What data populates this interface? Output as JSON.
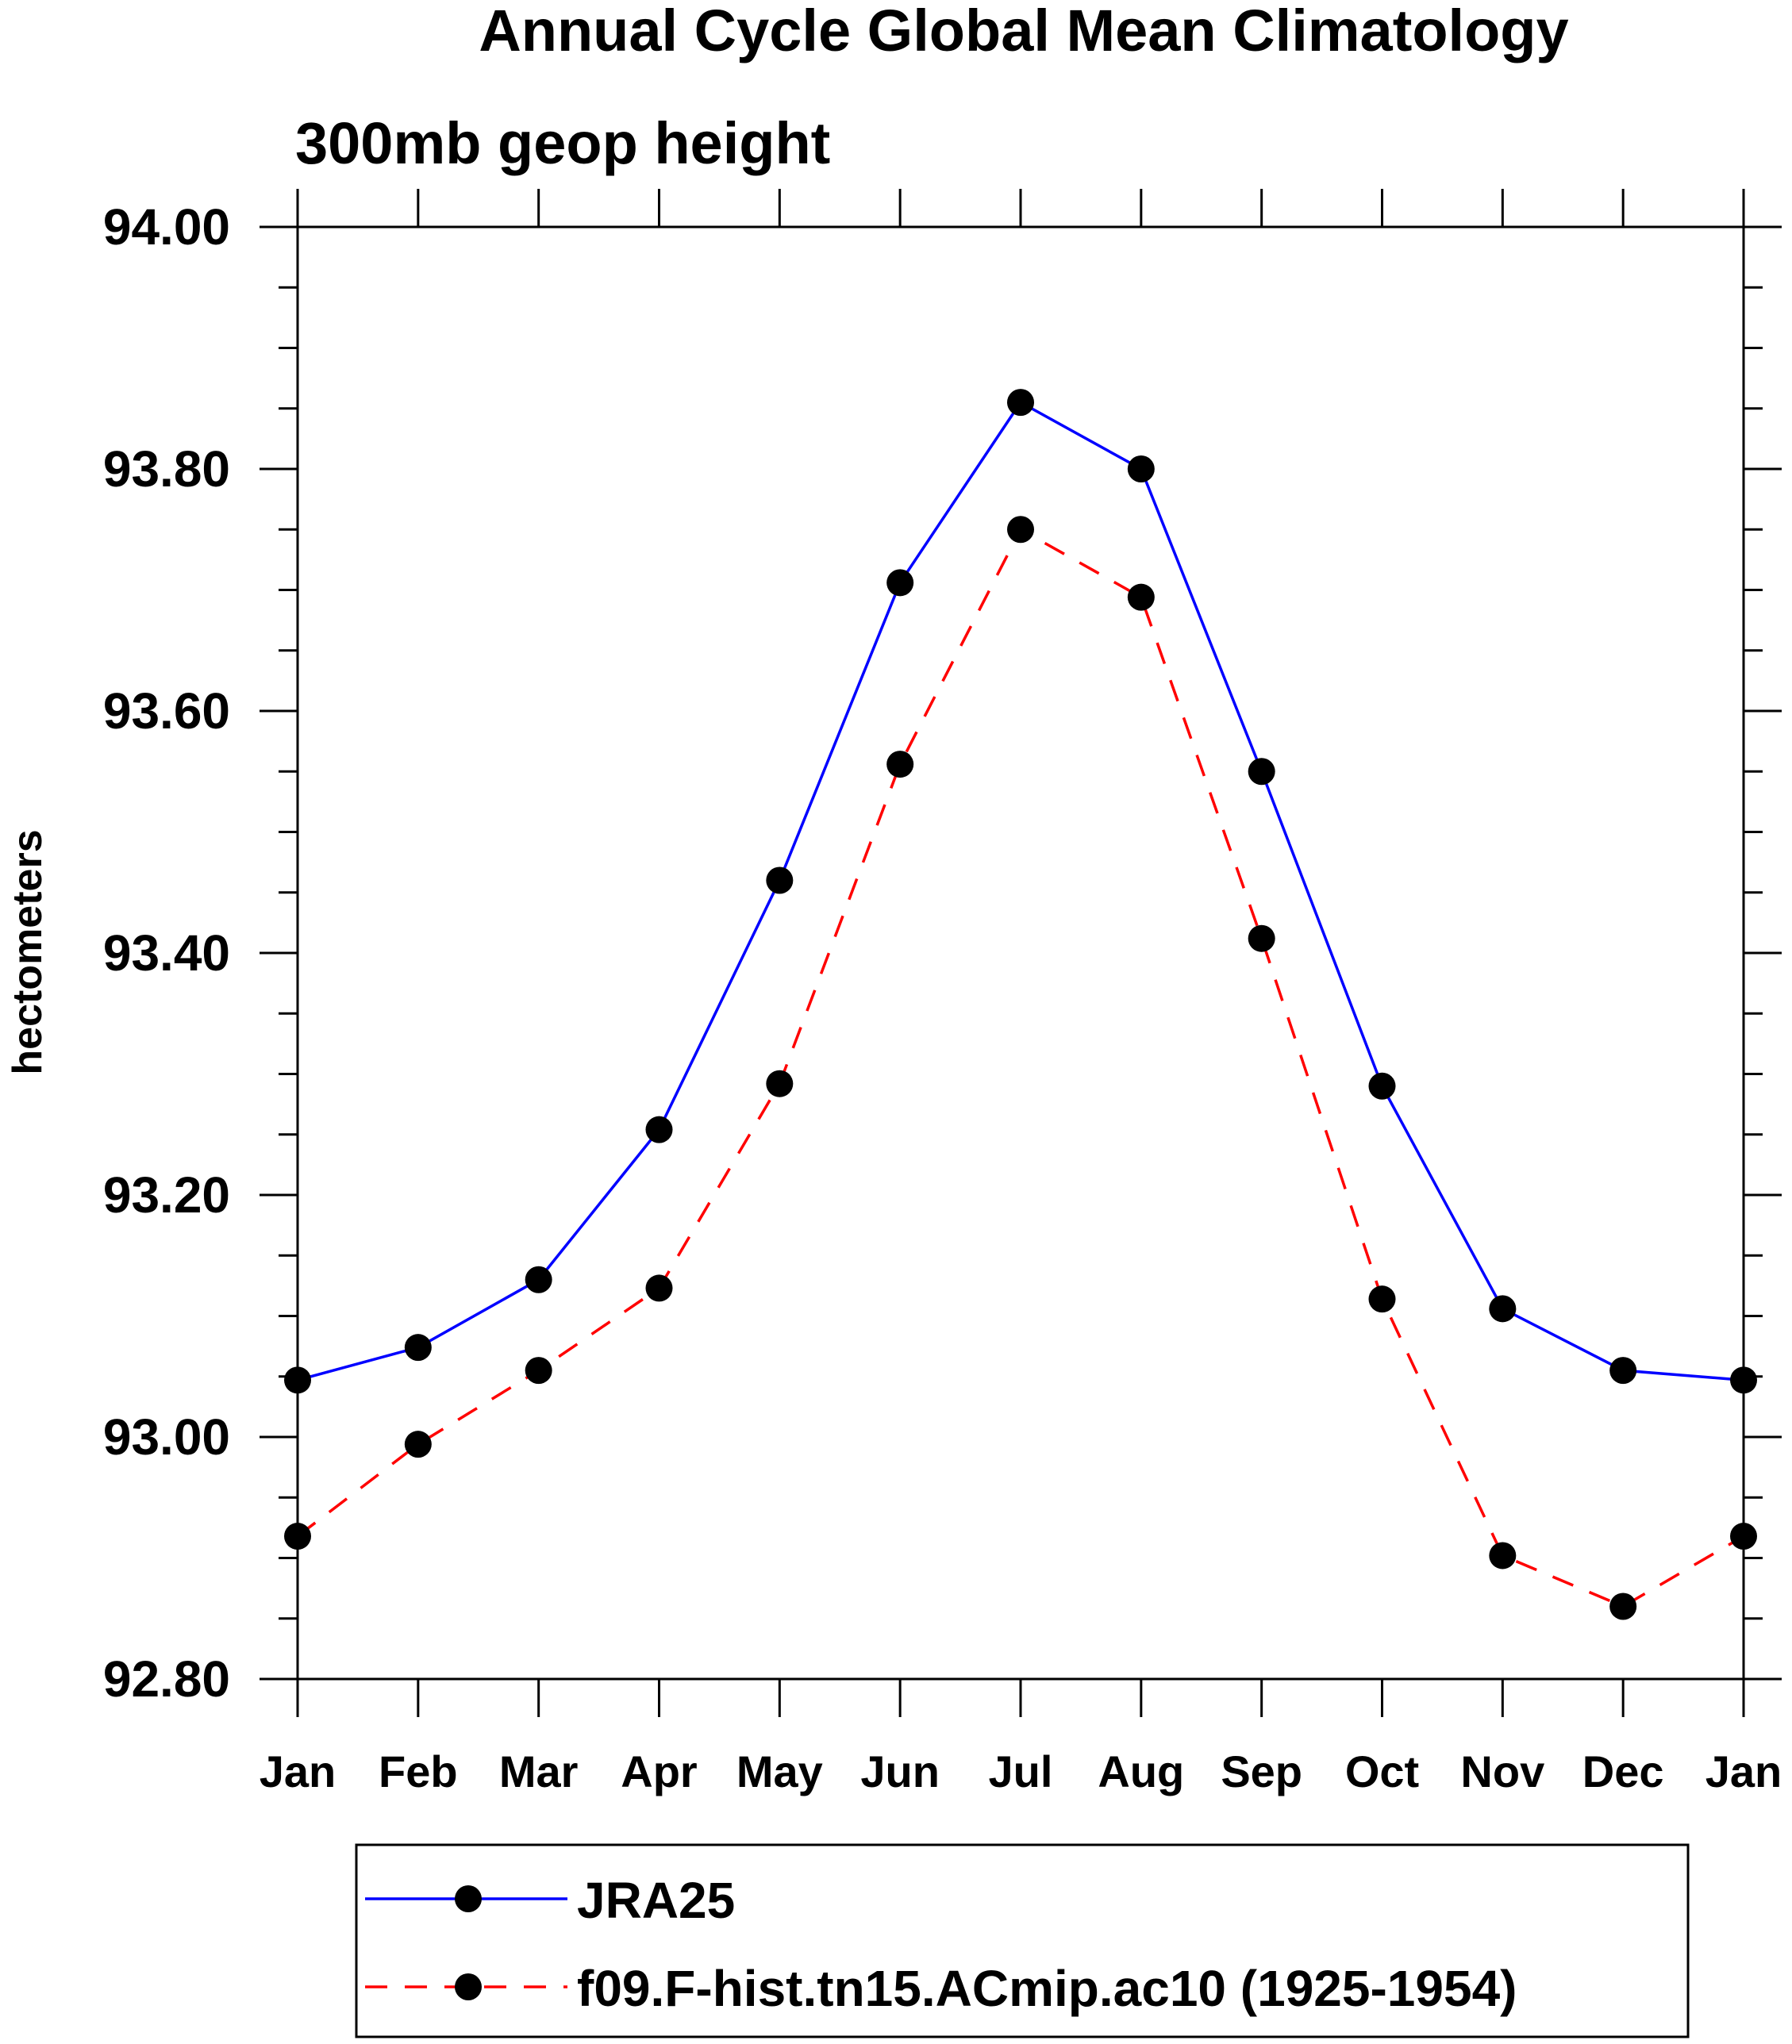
{
  "chart_data": {
    "type": "line",
    "title": "Annual Cycle Global Mean Climatology",
    "subtitle": "300mb geop height",
    "xlabel": "",
    "ylabel": "hectometers",
    "categories": [
      "Jan",
      "Feb",
      "Mar",
      "Apr",
      "May",
      "Jun",
      "Jul",
      "Aug",
      "Sep",
      "Oct",
      "Nov",
      "Dec",
      "Jan"
    ],
    "ylim": [
      92.8,
      94.0
    ],
    "y_major_ticks": [
      "92.80",
      "93.00",
      "93.20",
      "93.40",
      "93.60",
      "93.80",
      "94.00"
    ],
    "y_minor_step": 0.05,
    "grid": false,
    "legend_position": "bottom",
    "series": [
      {
        "name": "JRA25",
        "color": "#0000ff",
        "line_style": "solid",
        "marker": "filled-circle",
        "values": [
          93.047,
          93.074,
          93.13,
          93.254,
          93.46,
          93.706,
          93.855,
          93.8,
          93.55,
          93.29,
          93.106,
          93.055,
          93.047
        ]
      },
      {
        "name": "f09.F-hist.tn15.ACmip.ac10 (1925-1954)",
        "color": "#ff0000",
        "line_style": "dashed",
        "marker": "filled-circle",
        "values": [
          92.918,
          92.994,
          93.055,
          93.123,
          93.292,
          93.556,
          93.75,
          93.694,
          93.412,
          93.114,
          92.902,
          92.86,
          92.918
        ]
      }
    ]
  }
}
